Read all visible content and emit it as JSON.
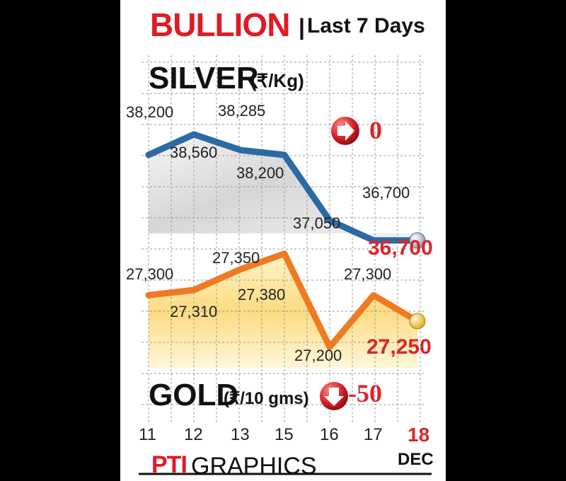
{
  "header": {
    "title": "BULLION",
    "separator": "|",
    "subtitle": "Last 7 Days"
  },
  "silver": {
    "label": "SILVER",
    "unit": "(₹/Kg)",
    "latest": "36,700",
    "change": "0",
    "change_direction": "flat"
  },
  "gold": {
    "label": "GOLD",
    "unit": "(₹/10 gms)",
    "latest": "27,250",
    "change": "-50",
    "change_direction": "down"
  },
  "month_label": "DEC",
  "source": {
    "brand": "PTI",
    "text": "GRAPHICS"
  },
  "colors": {
    "title_red": "#e01b22",
    "silver_line": "#2b6aa3",
    "gold_line": "#f07a22",
    "value_red": "#d9262c"
  },
  "chart_data": {
    "type": "line",
    "title": "BULLION | Last 7 Days",
    "categories": [
      "11",
      "12",
      "13",
      "15",
      "16",
      "17",
      "18"
    ],
    "series": [
      {
        "name": "SILVER (₹/Kg)",
        "values": [
          38200,
          38560,
          38285,
          38200,
          37050,
          36700,
          36700
        ],
        "labels": [
          "38,200",
          "38,560",
          "38,285",
          "38,200",
          "37,050",
          "36,700",
          "36,700"
        ]
      },
      {
        "name": "GOLD (₹/10 gms)",
        "values": [
          27300,
          27310,
          27350,
          27380,
          27200,
          27300,
          27250
        ],
        "labels": [
          "27,300",
          "27,310",
          "27,350",
          "27,380",
          "27,200",
          "27,300",
          "27,250"
        ]
      }
    ],
    "grid": true
  }
}
